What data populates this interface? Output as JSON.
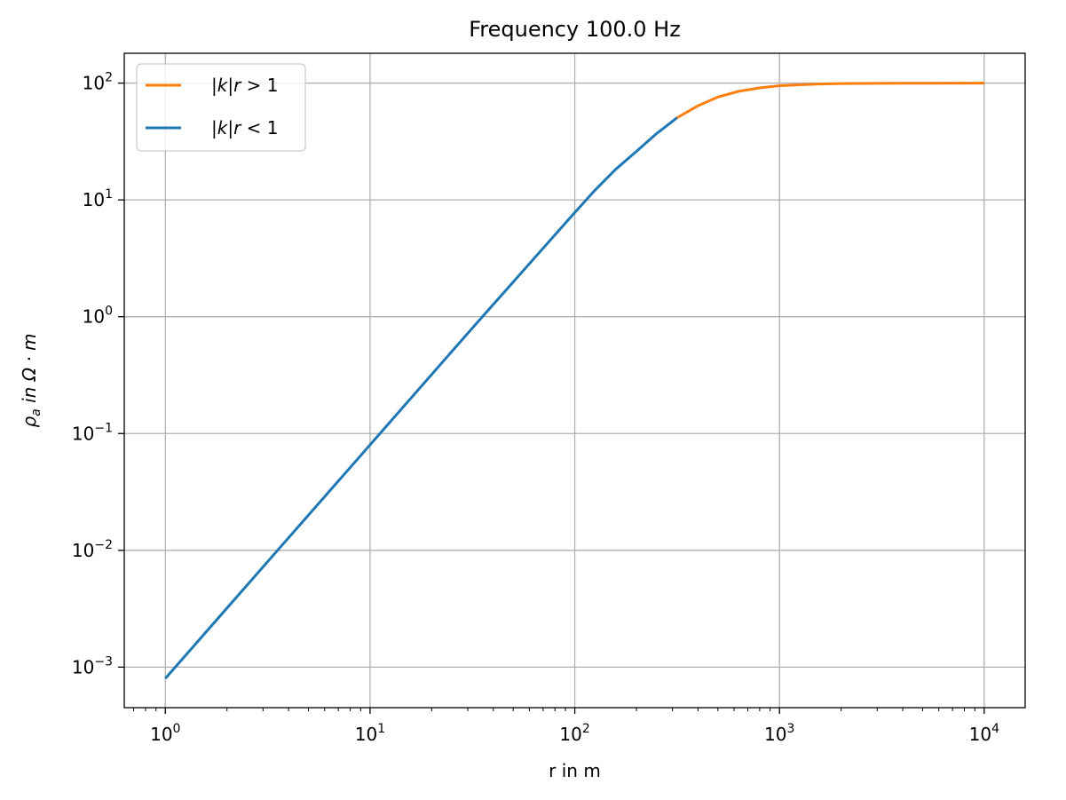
{
  "chart_data": {
    "type": "line",
    "title": "Frequency 100.0 Hz",
    "xlabel": "r in m",
    "ylabel_parts": {
      "rho": "ρ",
      "sub": "a",
      "rest": " in Ω · m"
    },
    "xscale": "log",
    "yscale": "log",
    "xlim": [
      0.63,
      15850
    ],
    "ylim": [
      0.00045,
      180
    ],
    "x_ticks": [
      {
        "value": 1,
        "base": "10",
        "exp": "0"
      },
      {
        "value": 10,
        "base": "10",
        "exp": "1"
      },
      {
        "value": 100,
        "base": "10",
        "exp": "2"
      },
      {
        "value": 1000,
        "base": "10",
        "exp": "3"
      },
      {
        "value": 10000,
        "base": "10",
        "exp": "4"
      }
    ],
    "y_ticks": [
      {
        "value": 0.001,
        "base": "10",
        "exp": "−3"
      },
      {
        "value": 0.01,
        "base": "10",
        "exp": "−2"
      },
      {
        "value": 0.1,
        "base": "10",
        "exp": "−1"
      },
      {
        "value": 1,
        "base": "10",
        "exp": "0"
      },
      {
        "value": 10,
        "base": "10",
        "exp": "1"
      },
      {
        "value": 100,
        "base": "10",
        "exp": "2"
      }
    ],
    "grid": true,
    "legend_position": "top-left",
    "legend": [
      {
        "series": "gt",
        "color": "#ff7f0e",
        "parts": [
          "|",
          "k",
          "|",
          "r",
          " > 1"
        ]
      },
      {
        "series": "lt",
        "color": "#1f77b4",
        "parts": [
          "|",
          "k",
          "|",
          "r",
          " < 1"
        ]
      }
    ],
    "series": [
      {
        "key": "gt",
        "color": "#ff7f0e",
        "x": [
          316,
          400,
          500,
          630,
          800,
          1000,
          1500,
          2000,
          3000,
          5000,
          10000
        ],
        "y": [
          50.5,
          64,
          76,
          85,
          91,
          95,
          98,
          99,
          99.5,
          99.8,
          100
        ]
      },
      {
        "key": "lt",
        "color": "#1f77b4",
        "x": [
          1,
          3.16,
          10,
          31.6,
          100,
          126,
          158,
          200,
          251,
          316
        ],
        "y": [
          0.0008,
          0.008,
          0.08,
          0.8,
          7.8,
          12.2,
          18.2,
          26,
          37,
          50.5
        ]
      }
    ]
  }
}
